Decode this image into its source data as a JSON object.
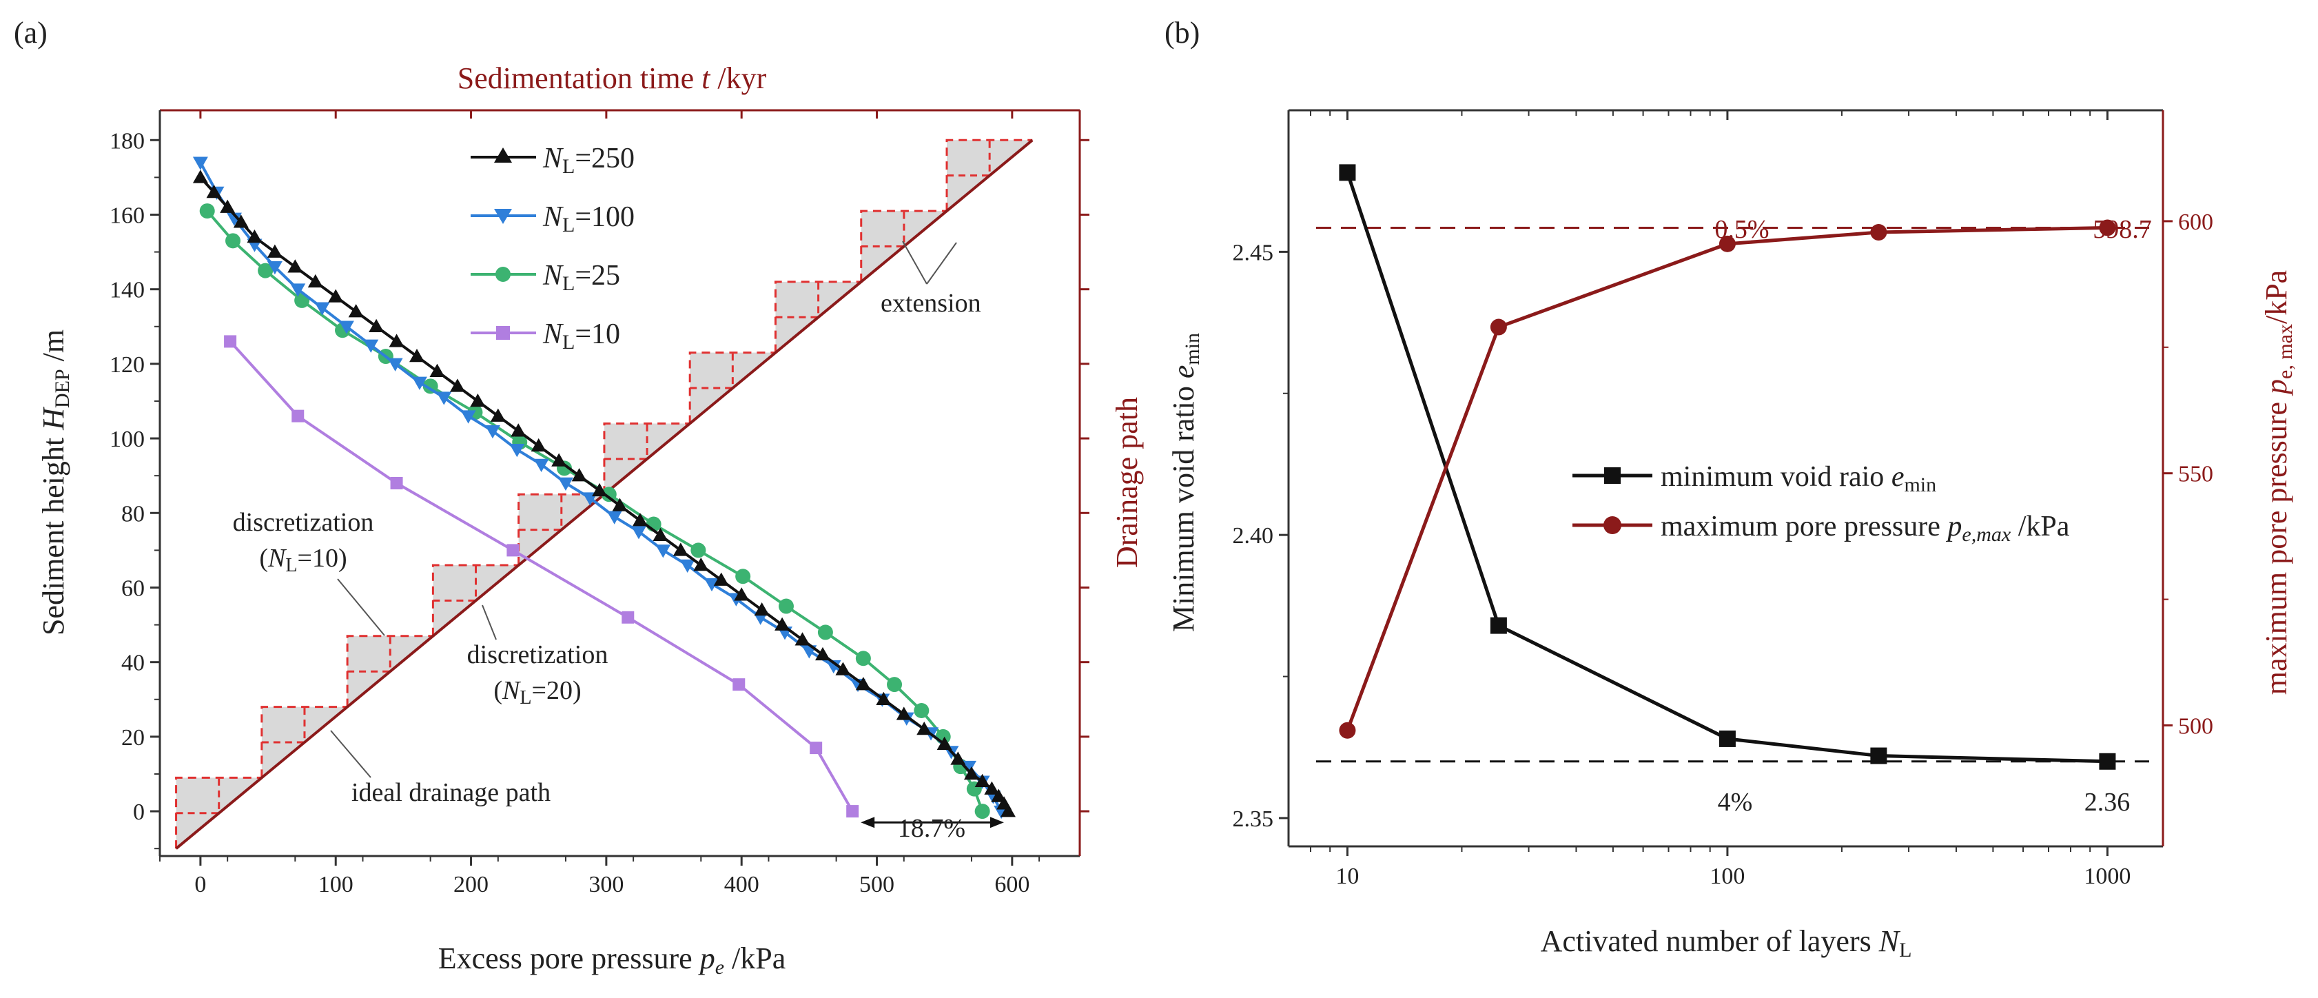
{
  "chart_data": [
    {
      "panel": "(a)",
      "type": "line",
      "title_top": "Sedimentation time",
      "title_top_var": "t",
      "title_top_unit": "/kyr",
      "xlabel": "Excess pore pressure",
      "xlabel_var": "p",
      "xlabel_sub": "e",
      "xlabel_unit": "/kPa",
      "ylabel": "Sediment height",
      "ylabel_var": "H",
      "ylabel_sub": "DEP",
      "ylabel_unit": "/m",
      "right_label": "Drainage path",
      "xlim": [
        -30,
        650
      ],
      "ylim": [
        -12,
        188
      ],
      "x_ticks": [
        0,
        100,
        200,
        300,
        400,
        500,
        600
      ],
      "y_ticks": [
        0,
        20,
        40,
        60,
        80,
        100,
        120,
        140,
        160,
        180
      ],
      "series": [
        {
          "name_var": "N",
          "name_sub": "L",
          "name_eq": "=250",
          "color": "#111111",
          "marker": "triangle-up",
          "x": [
            0,
            10,
            20,
            30,
            40,
            55,
            70,
            85,
            100,
            115,
            130,
            145,
            160,
            175,
            190,
            205,
            220,
            235,
            250,
            265,
            280,
            295,
            310,
            325,
            340,
            355,
            370,
            385,
            400,
            415,
            430,
            445,
            460,
            475,
            490,
            505,
            520,
            535,
            550,
            560,
            570,
            578,
            585,
            590,
            594,
            597
          ],
          "y": [
            170,
            166,
            162,
            158,
            154,
            150,
            146,
            142,
            138,
            134,
            130,
            126,
            122,
            118,
            114,
            110,
            106,
            102,
            98,
            94,
            90,
            86,
            82,
            78,
            74,
            70,
            66,
            62,
            58,
            54,
            50,
            46,
            42,
            38,
            34,
            30,
            26,
            22,
            18,
            14,
            10,
            8,
            6,
            4,
            2,
            0
          ]
        },
        {
          "name_var": "N",
          "name_sub": "L",
          "name_eq": "=100",
          "color": "#2f7fd9",
          "marker": "triangle-down",
          "x": [
            0,
            12,
            25,
            40,
            55,
            72,
            90,
            108,
            126,
            144,
            162,
            180,
            198,
            216,
            234,
            252,
            270,
            288,
            306,
            324,
            342,
            360,
            378,
            396,
            414,
            432,
            450,
            468,
            486,
            504,
            522,
            540,
            555,
            568,
            578,
            586,
            592
          ],
          "y": [
            174,
            166,
            159,
            152,
            146,
            140,
            135,
            130,
            125,
            120,
            115,
            111,
            106,
            102,
            97,
            93,
            88,
            84,
            79,
            75,
            70,
            66,
            61,
            57,
            52,
            48,
            43,
            39,
            34,
            30,
            25,
            21,
            16,
            12,
            8,
            4,
            0
          ]
        },
        {
          "name_var": "N",
          "name_sub": "L",
          "name_eq": "=25",
          "color": "#3cb371",
          "marker": "circle",
          "x": [
            5,
            24,
            48,
            75,
            105,
            137,
            170,
            203,
            236,
            269,
            302,
            335,
            368,
            401,
            433,
            462,
            490,
            513,
            533,
            549,
            562,
            572,
            578
          ],
          "y": [
            161,
            153,
            145,
            137,
            129,
            122,
            114,
            107,
            99,
            92,
            85,
            77,
            70,
            63,
            55,
            48,
            41,
            34,
            27,
            20,
            12,
            6,
            0
          ]
        },
        {
          "name_var": "N",
          "name_sub": "L",
          "name_eq": "=10",
          "color": "#b07ee0",
          "marker": "square",
          "x": [
            22,
            72,
            145,
            231,
            316,
            398,
            455,
            482
          ],
          "y": [
            126,
            106,
            88,
            70,
            52,
            34,
            17,
            0
          ]
        }
      ],
      "ideal_drainage_path": {
        "x": [
          -18,
          615
        ],
        "y": [
          -10,
          180
        ]
      },
      "annotations": {
        "discretization_10": "discretization",
        "discretization_10_eq": "=10)",
        "discretization_20": "discretization",
        "discretization_20_eq": "=20)",
        "ideal": "ideal drainage path",
        "extension": "extension",
        "diff": "18.7%"
      }
    },
    {
      "panel": "(b)",
      "type": "line",
      "xscale": "log",
      "xlabel": "Activated number of layers",
      "xlabel_var": "N",
      "xlabel_sub": "L",
      "ylabel_left": "Minimum void ratio",
      "ylabel_left_var": "e",
      "ylabel_left_sub": "min",
      "ylabel_right": "maximum pore pressure",
      "ylabel_right_var": "p",
      "ylabel_right_sub": "e, max",
      "ylabel_right_unit": "/kPa",
      "xlim": [
        7,
        1400
      ],
      "ylim_left": [
        2.345,
        2.475
      ],
      "ylim_right": [
        476,
        622
      ],
      "x_ticks": [
        10,
        100,
        1000
      ],
      "x_tick_labels": [
        "10",
        "100",
        "1000"
      ],
      "y_ticks_left": [
        2.35,
        2.4,
        2.45
      ],
      "y_tick_labels_left": [
        "2.35",
        "2.40",
        "2.45"
      ],
      "y_ticks_right": [
        500,
        550,
        600
      ],
      "series": [
        {
          "name": "minimum void raio",
          "name_var": "e",
          "name_sub": "min",
          "axis": "left",
          "color": "#111111",
          "marker": "square",
          "x": [
            10,
            25,
            100,
            250,
            1000
          ],
          "y": [
            2.464,
            2.384,
            2.364,
            2.361,
            2.36
          ]
        },
        {
          "name": "maximum pore pressure",
          "name_var": "p",
          "name_sub": "e,max",
          "name_unit": "/kPa",
          "axis": "right",
          "color": "#8b1a1a",
          "marker": "circle",
          "x": [
            10,
            25,
            100,
            250,
            1000
          ],
          "y": [
            499,
            579,
            595.5,
            597.8,
            598.7
          ]
        }
      ],
      "ref_left": 2.36,
      "ref_right": 598.7,
      "annotations": {
        "pct_top": "0.5%",
        "val_top": "598.7",
        "pct_bot": "4%",
        "val_bot": "2.36"
      }
    }
  ]
}
